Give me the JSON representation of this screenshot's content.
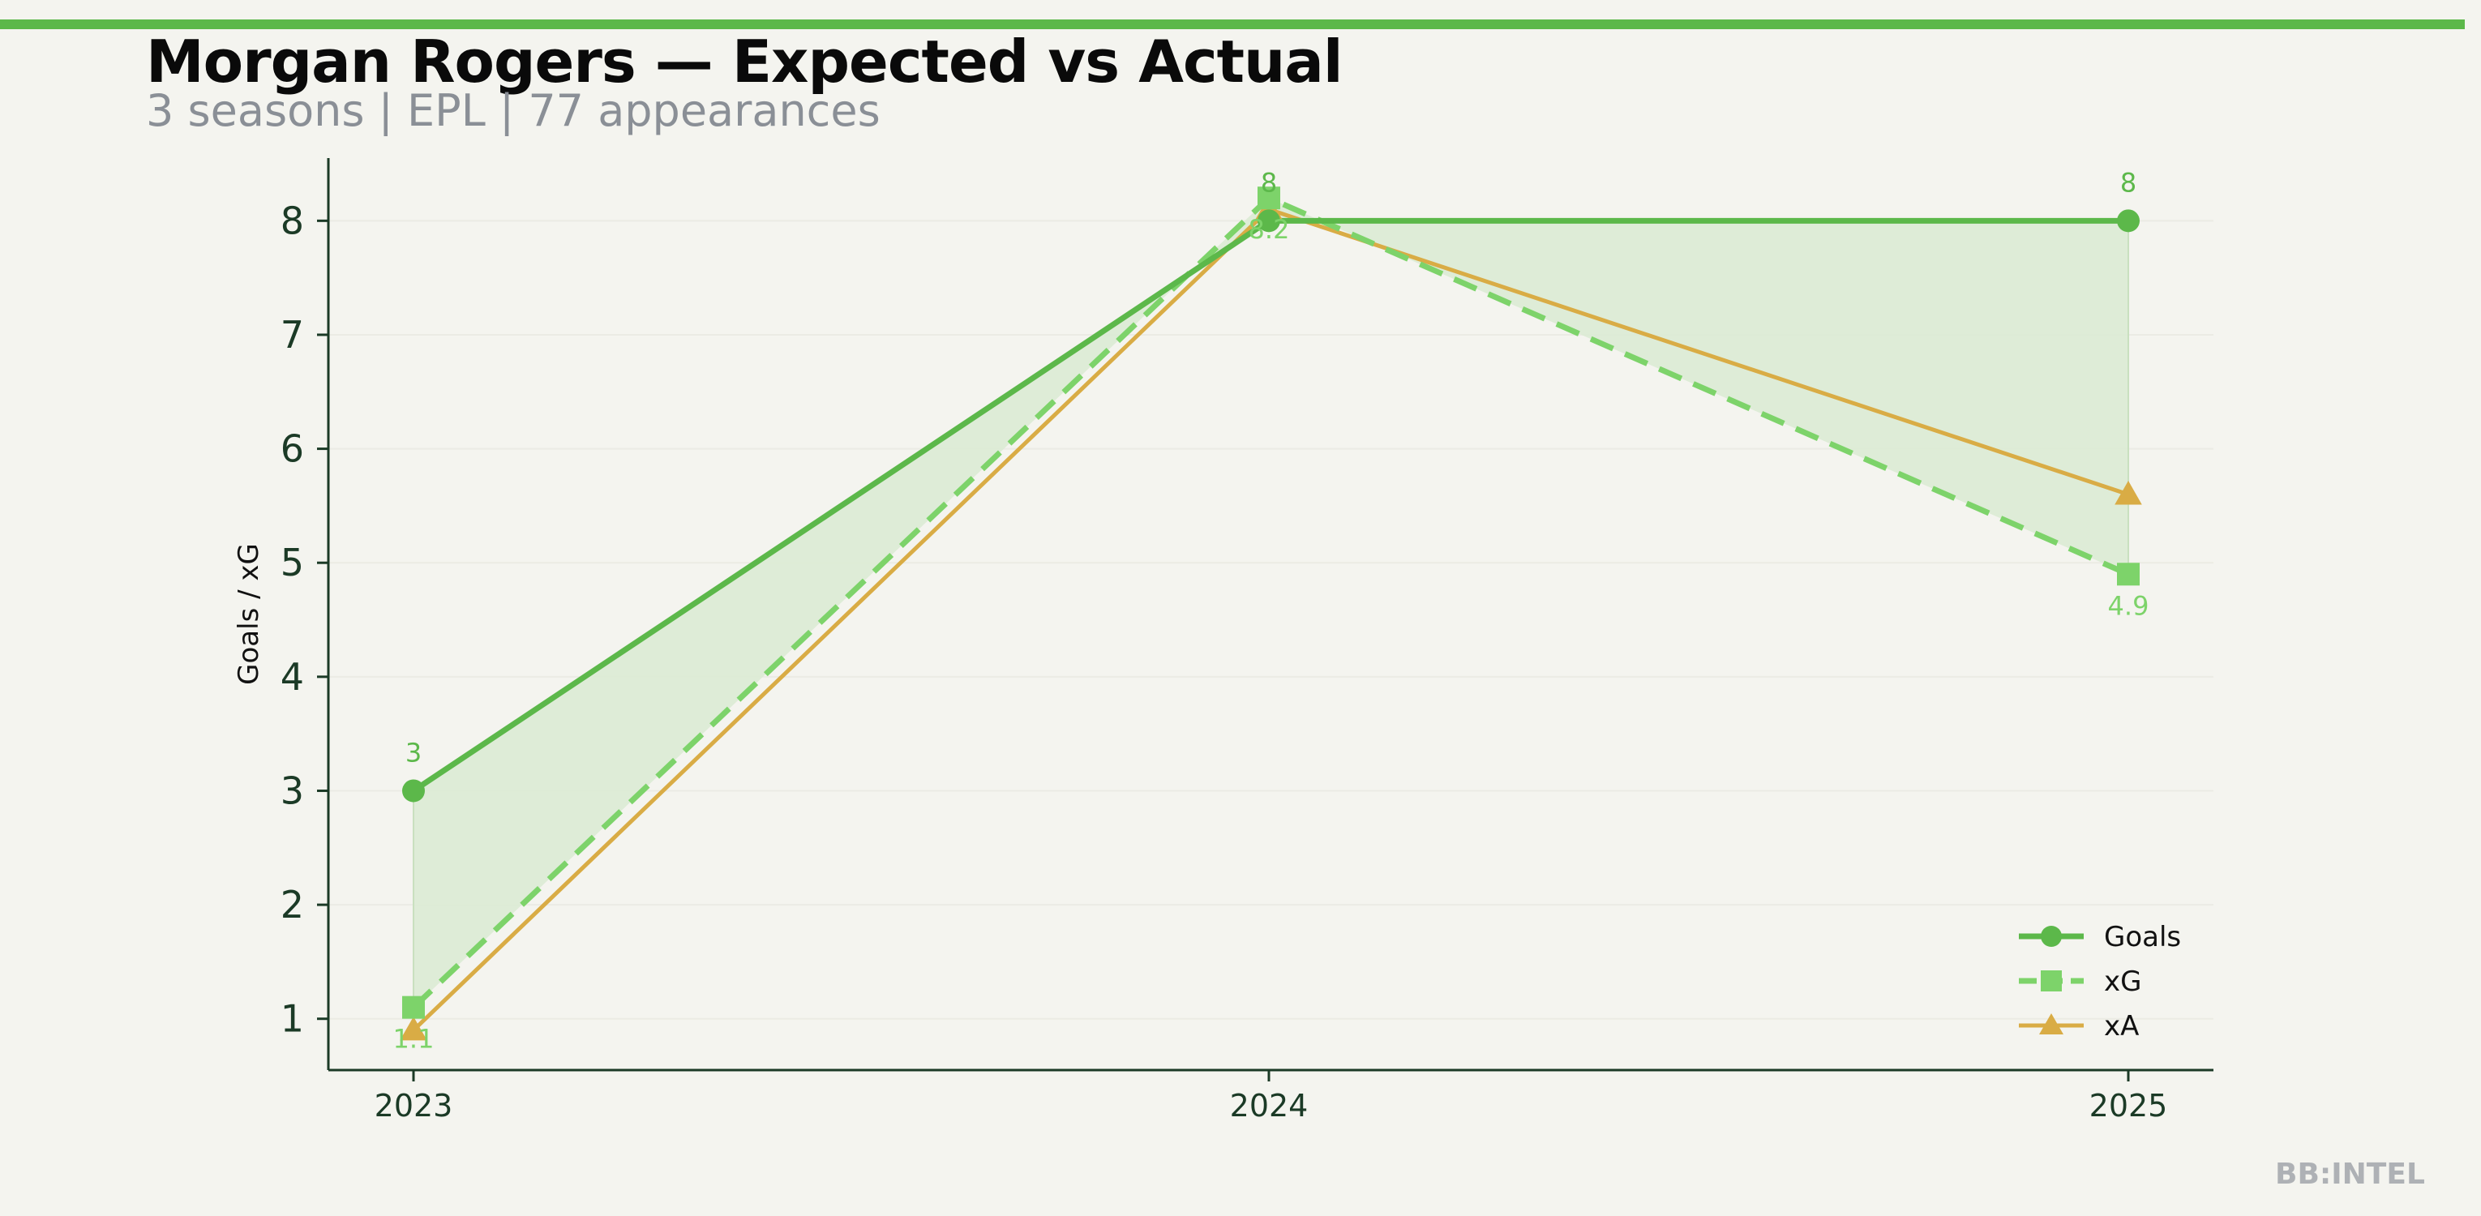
{
  "header": {
    "title": "Morgan Rogers — Expected vs Actual",
    "subtitle": "3 seasons | EPL | 77 appearances"
  },
  "watermark": "BB:INTEL",
  "colors": {
    "accent": "#5cb84a",
    "goals": "#5cb84a",
    "xg": "#7dd36a",
    "xa": "#d9ac45",
    "fill": "#dcebd4",
    "axis": "#1b3a26",
    "background": "#f4f4ef"
  },
  "chart_data": {
    "type": "line",
    "x": [
      "2023",
      "2024",
      "2025"
    ],
    "ylabel": "Goals / xG",
    "ylim": [
      0.55,
      8.55
    ],
    "yticks": [
      1,
      2,
      3,
      4,
      5,
      6,
      7,
      8
    ],
    "grid": true,
    "legend": "bottom-right",
    "shaded_region": "between Goals and xG",
    "series": [
      {
        "name": "Goals",
        "values": [
          3,
          8,
          8
        ],
        "labels": [
          "3",
          "8",
          "8"
        ],
        "marker": "circle",
        "style": "solid"
      },
      {
        "name": "xG",
        "values": [
          1.1,
          8.2,
          4.9
        ],
        "labels": [
          "1.1",
          "8.2",
          "4.9"
        ],
        "marker": "square",
        "style": "dashed"
      },
      {
        "name": "xA",
        "values": [
          0.9,
          8.1,
          5.6
        ],
        "marker": "triangle",
        "style": "solid"
      }
    ]
  }
}
